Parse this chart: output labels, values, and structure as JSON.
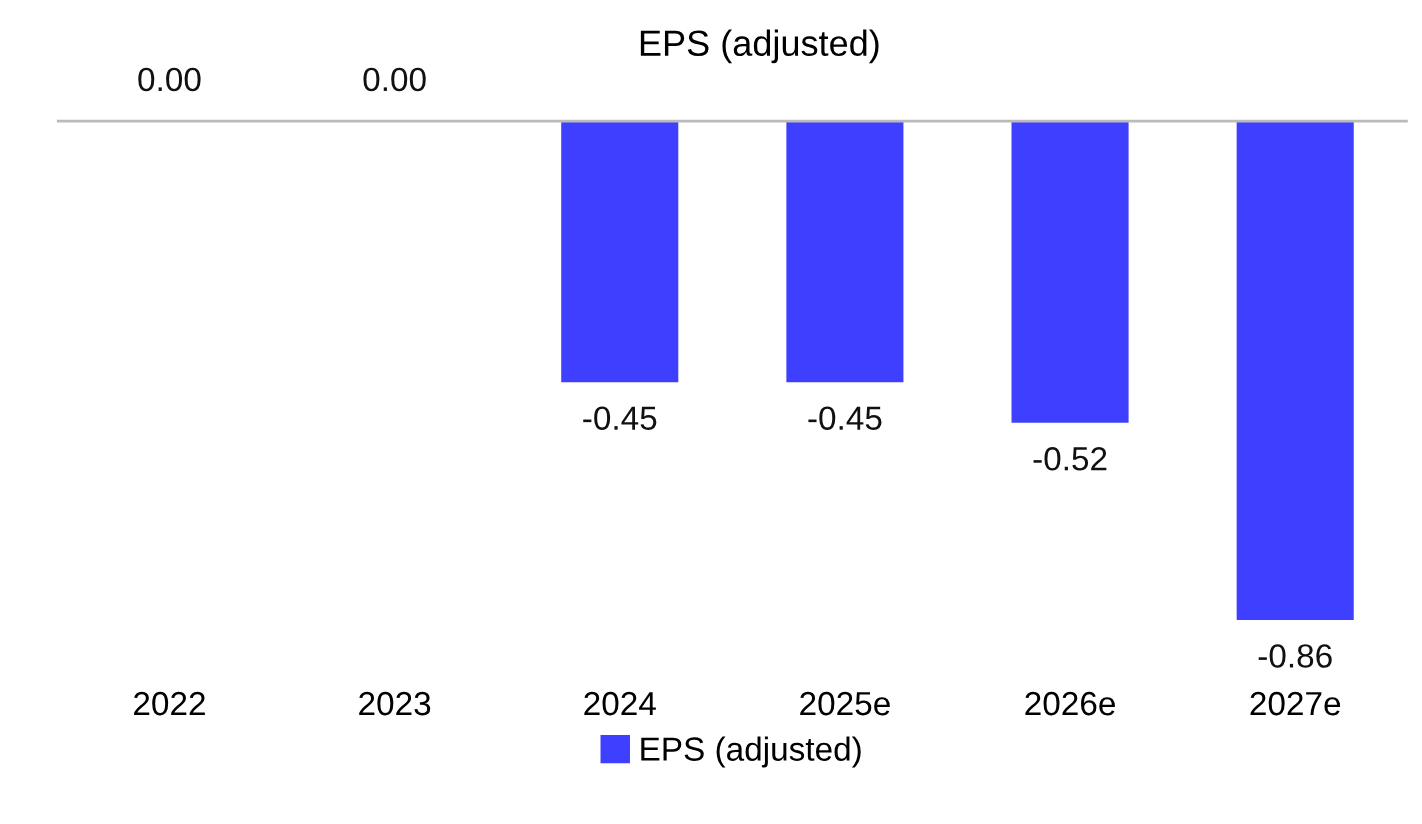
{
  "chart_data": {
    "type": "bar",
    "title": "EPS (adjusted)",
    "categories": [
      "2022",
      "2023",
      "2024",
      "2025e",
      "2026e",
      "2027e"
    ],
    "series": [
      {
        "name": "EPS (adjusted)",
        "color": "#3f3fff",
        "values": [
          0.0,
          0.0,
          -0.45,
          -0.45,
          -0.52,
          -0.86
        ],
        "value_labels": [
          "0.00",
          "0.00",
          "-0.45",
          "-0.45",
          "-0.52",
          "-0.86"
        ]
      }
    ],
    "legend": "bottom",
    "grid": false
  }
}
